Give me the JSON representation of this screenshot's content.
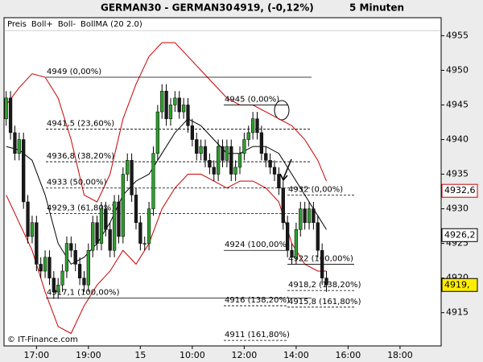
{
  "chart_data": {
    "type": "candlestick",
    "title": "GERMAN30 - GERMAN30",
    "subtitle": "4919, (-0,12%)",
    "interval": "5 Minuten",
    "copyright": "© IT-Finance.com",
    "name": "Preis",
    "up_color": "#2f9e2f",
    "down_color": "#1a1a1a",
    "open": [
      4943,
      4946,
      4941,
      4938,
      4940,
      4931,
      4926,
      4928,
      4922,
      4921,
      4923,
      4920,
      4918,
      4919,
      4921,
      4925,
      4924,
      4922,
      4920,
      4919,
      4924,
      4928,
      4925,
      4930,
      4927,
      4924,
      4931,
      4926,
      4935,
      4937,
      4932,
      4928,
      4925,
      4925,
      4930,
      4938,
      4944,
      4947,
      4943,
      4945,
      4946,
      4944,
      4945,
      4942,
      4940,
      4938,
      4939,
      4937,
      4936,
      4935,
      4939,
      4937,
      4939,
      4935,
      4936,
      4938,
      4940,
      4941,
      4943,
      4941,
      4938,
      4937,
      4936,
      4935,
      4933,
      4928,
      4924,
      4923,
      4927,
      4930,
      4928,
      4930,
      4928,
      4924,
      4920
    ],
    "high": [
      4947,
      4947,
      4942,
      4941,
      4941,
      4932,
      4929,
      4929,
      4923,
      4924,
      4924,
      4921,
      4920,
      4922,
      4926,
      4926,
      4925,
      4923,
      4921,
      4925,
      4929,
      4929,
      4931,
      4931,
      4928,
      4932,
      4932,
      4936,
      4938,
      4938,
      4933,
      4929,
      4926,
      4931,
      4939,
      4945,
      4948,
      4948,
      4946,
      4947,
      4947,
      4946,
      4946,
      4943,
      4941,
      4940,
      4940,
      4938,
      4937,
      4940,
      4940,
      4940,
      4940,
      4937,
      4939,
      4941,
      4942,
      4944,
      4944,
      4942,
      4939,
      4938,
      4937,
      4936,
      4934,
      4929,
      4925,
      4928,
      4931,
      4931,
      4931,
      4931,
      4929,
      4925,
      4921
    ],
    "low": [
      4942,
      4940,
      4937,
      4937,
      4930,
      4925,
      4925,
      4921,
      4920,
      4920,
      4919,
      4917,
      4917,
      4918,
      4920,
      4923,
      4921,
      4919,
      4918,
      4918,
      4923,
      4924,
      4924,
      4926,
      4923,
      4923,
      4925,
      4925,
      4934,
      4931,
      4927,
      4924,
      4924,
      4924,
      4929,
      4937,
      4943,
      4942,
      4942,
      4944,
      4943,
      4943,
      4941,
      4939,
      4937,
      4937,
      4936,
      4935,
      4934,
      4934,
      4936,
      4936,
      4934,
      4934,
      4935,
      4937,
      4939,
      4940,
      4940,
      4937,
      4936,
      4935,
      4934,
      4932,
      4927,
      4923,
      4922,
      4922,
      4926,
      4927,
      4927,
      4927,
      4923,
      4919,
      4918
    ],
    "close": [
      4946,
      4941,
      4938,
      4940,
      4931,
      4926,
      4928,
      4922,
      4921,
      4923,
      4920,
      4918,
      4919,
      4921,
      4925,
      4924,
      4922,
      4920,
      4919,
      4924,
      4928,
      4925,
      4930,
      4927,
      4924,
      4931,
      4926,
      4935,
      4937,
      4932,
      4928,
      4925,
      4925,
      4930,
      4938,
      4944,
      4947,
      4943,
      4945,
      4946,
      4944,
      4945,
      4942,
      4940,
      4938,
      4939,
      4937,
      4936,
      4935,
      4939,
      4937,
      4939,
      4935,
      4936,
      4938,
      4940,
      4941,
      4943,
      4941,
      4938,
      4937,
      4936,
      4935,
      4933,
      4928,
      4924,
      4923,
      4927,
      4930,
      4928,
      4930,
      4928,
      4924,
      4920,
      4919
    ],
    "series": [
      {
        "name": "Boll+",
        "color": "#cc0000",
        "x": [
          0,
          3,
          6,
          9,
          12,
          15,
          18,
          21,
          24,
          27,
          30,
          33,
          36,
          39,
          42,
          45,
          48,
          51,
          54,
          57,
          60,
          63,
          66,
          69,
          72,
          74
        ],
        "values": [
          4945,
          4947.5,
          4949.5,
          4949,
          4946,
          4940,
          4932,
          4931,
          4935,
          4943,
          4948,
          4952,
          4954,
          4954,
          4952,
          4950,
          4948,
          4946,
          4945,
          4945,
          4944,
          4943,
          4942,
          4940,
          4937,
          4934
        ]
      },
      {
        "name": "Boll-",
        "color": "#cc0000",
        "x": [
          0,
          3,
          6,
          9,
          12,
          15,
          18,
          21,
          24,
          27,
          30,
          33,
          36,
          39,
          42,
          45,
          48,
          51,
          54,
          57,
          60,
          63,
          66,
          69,
          72,
          74
        ],
        "values": [
          4932,
          4928,
          4924,
          4918,
          4913,
          4912,
          4916,
          4919,
          4921,
          4924,
          4922,
          4925,
          4930,
          4933,
          4935,
          4935,
          4934,
          4933,
          4934,
          4934,
          4933,
          4931,
          4925,
          4922,
          4921,
          4921
        ]
      },
      {
        "name": "BollMA (20 2.0)",
        "color": "#000000",
        "x": [
          0,
          3,
          6,
          9,
          12,
          15,
          18,
          21,
          24,
          27,
          30,
          33,
          36,
          39,
          42,
          45,
          48,
          51,
          54,
          57,
          60,
          63,
          66,
          69,
          72,
          74
        ],
        "values": [
          4939,
          4938.5,
          4937,
          4932,
          4925,
          4922,
          4923,
          4925,
          4928,
          4932,
          4934,
          4935,
          4938,
          4941,
          4943,
          4942,
          4940,
          4938,
          4938,
          4939,
          4939,
          4938,
          4935,
          4932,
          4929,
          4927
        ]
      }
    ],
    "xlim": [
      -0.5,
      100.5
    ],
    "xticks": [
      {
        "value": 7,
        "label": "17:00"
      },
      {
        "value": 19,
        "label": "19:00"
      },
      {
        "value": 31,
        "label": "15"
      },
      {
        "value": 43,
        "label": "10:00"
      },
      {
        "value": 55,
        "label": "12:00"
      },
      {
        "value": 67,
        "label": "14:00"
      },
      {
        "value": 79,
        "label": "16:00"
      },
      {
        "value": 91,
        "label": "18:00"
      }
    ],
    "ylim": [
      4910.2,
      4957.6
    ],
    "yticks": [
      4915,
      4920,
      4925,
      4930,
      4935,
      4940,
      4945,
      4950,
      4955
    ],
    "price_markers": [
      {
        "value": 4932.6,
        "label": "4932,6",
        "color": "#cc0000",
        "background": "#ffffff"
      },
      {
        "value": 4926.2,
        "label": "4926,2",
        "color": "#000000",
        "background": "#ffffff"
      },
      {
        "value": 4919,
        "label": "4919,",
        "color": "#000000",
        "background": "#ffee00"
      }
    ],
    "fib_sets": [
      {
        "levels": [
          {
            "value": 4949,
            "label": "4949 (0,00%)",
            "dashed": false
          },
          {
            "value": 4941.5,
            "label": "4941,5 (23,60%)",
            "dashed": true
          },
          {
            "value": 4936.8,
            "label": "4936,8 (38,20%)",
            "dashed": true
          },
          {
            "value": 4933,
            "label": "4933 (50,00%)",
            "dashed": true
          },
          {
            "value": 4929.3,
            "label": "4929,3 (61,80%)",
            "dashed": true
          },
          {
            "value": 4917.1,
            "label": "4917,1 (100,00%)",
            "dashed": false
          }
        ]
      },
      {
        "levels": [
          {
            "value": 4945,
            "label": "4945 (0,00%)",
            "dashed": false
          },
          {
            "value": 4924,
            "label": "4924 (100,00%)",
            "dashed": false
          },
          {
            "value": 4916,
            "label": "4916 (138,20%)",
            "dashed": true
          },
          {
            "value": 4911,
            "label": "4911 (161,80%)",
            "dashed": true
          }
        ]
      },
      {
        "levels": [
          {
            "value": 4932,
            "label": "4932 (0,00%)",
            "dashed": true
          },
          {
            "value": 4922,
            "label": "4922 (100,00%)",
            "dashed": false
          },
          {
            "value": 4918.2,
            "label": "4918,2 (138,20%)",
            "dashed": true
          },
          {
            "value": 4915.8,
            "label": "4915,8 (161,80%)",
            "dashed": true
          }
        ]
      }
    ]
  }
}
